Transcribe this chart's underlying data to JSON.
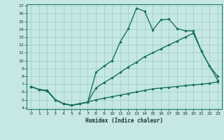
{
  "xlabel": "Humidex (Indice chaleur)",
  "background_color": "#c5e8e2",
  "grid_color": "#9dccc4",
  "line_color": "#1a7060",
  "xlim": [
    -0.5,
    23.5
  ],
  "ylim": [
    3.8,
    17.2
  ],
  "xticks": [
    0,
    1,
    2,
    3,
    4,
    5,
    6,
    7,
    8,
    9,
    10,
    11,
    12,
    13,
    14,
    15,
    16,
    17,
    18,
    19,
    20,
    21,
    22,
    23
  ],
  "yticks": [
    4,
    5,
    6,
    7,
    8,
    9,
    10,
    11,
    12,
    13,
    14,
    15,
    16,
    17
  ],
  "curve1_x": [
    0,
    1,
    2,
    3,
    4,
    5,
    6,
    7,
    8,
    9,
    10,
    11,
    12,
    13,
    14,
    15,
    16,
    17,
    18,
    19,
    20,
    21,
    22,
    23
  ],
  "curve1_y": [
    6.7,
    6.3,
    6.2,
    5.0,
    4.5,
    4.3,
    4.5,
    4.7,
    8.5,
    9.3,
    10.0,
    12.4,
    14.1,
    16.7,
    16.3,
    13.9,
    15.2,
    15.3,
    14.1,
    13.8,
    13.8,
    11.2,
    9.3,
    8.0
  ],
  "curve2_x": [
    0,
    1,
    2,
    3,
    4,
    5,
    6,
    7,
    8,
    9,
    10,
    11,
    12,
    13,
    14,
    15,
    16,
    17,
    18,
    19,
    20,
    21,
    22,
    23
  ],
  "curve2_y": [
    6.7,
    6.3,
    6.2,
    5.0,
    4.5,
    4.3,
    4.5,
    4.7,
    6.5,
    7.2,
    7.8,
    8.5,
    9.2,
    9.8,
    10.5,
    11.0,
    11.5,
    12.0,
    12.5,
    13.0,
    13.5,
    11.2,
    9.3,
    7.5
  ],
  "curve3_x": [
    0,
    1,
    2,
    3,
    4,
    5,
    6,
    7,
    8,
    9,
    10,
    11,
    12,
    13,
    14,
    15,
    16,
    17,
    18,
    19,
    20,
    21,
    22,
    23
  ],
  "curve3_y": [
    6.7,
    6.3,
    6.1,
    5.0,
    4.5,
    4.3,
    4.5,
    4.7,
    5.0,
    5.2,
    5.4,
    5.6,
    5.8,
    6.0,
    6.2,
    6.4,
    6.5,
    6.6,
    6.7,
    6.8,
    6.9,
    7.0,
    7.1,
    7.3
  ],
  "line_width": 1.0,
  "marker_size": 2.5
}
